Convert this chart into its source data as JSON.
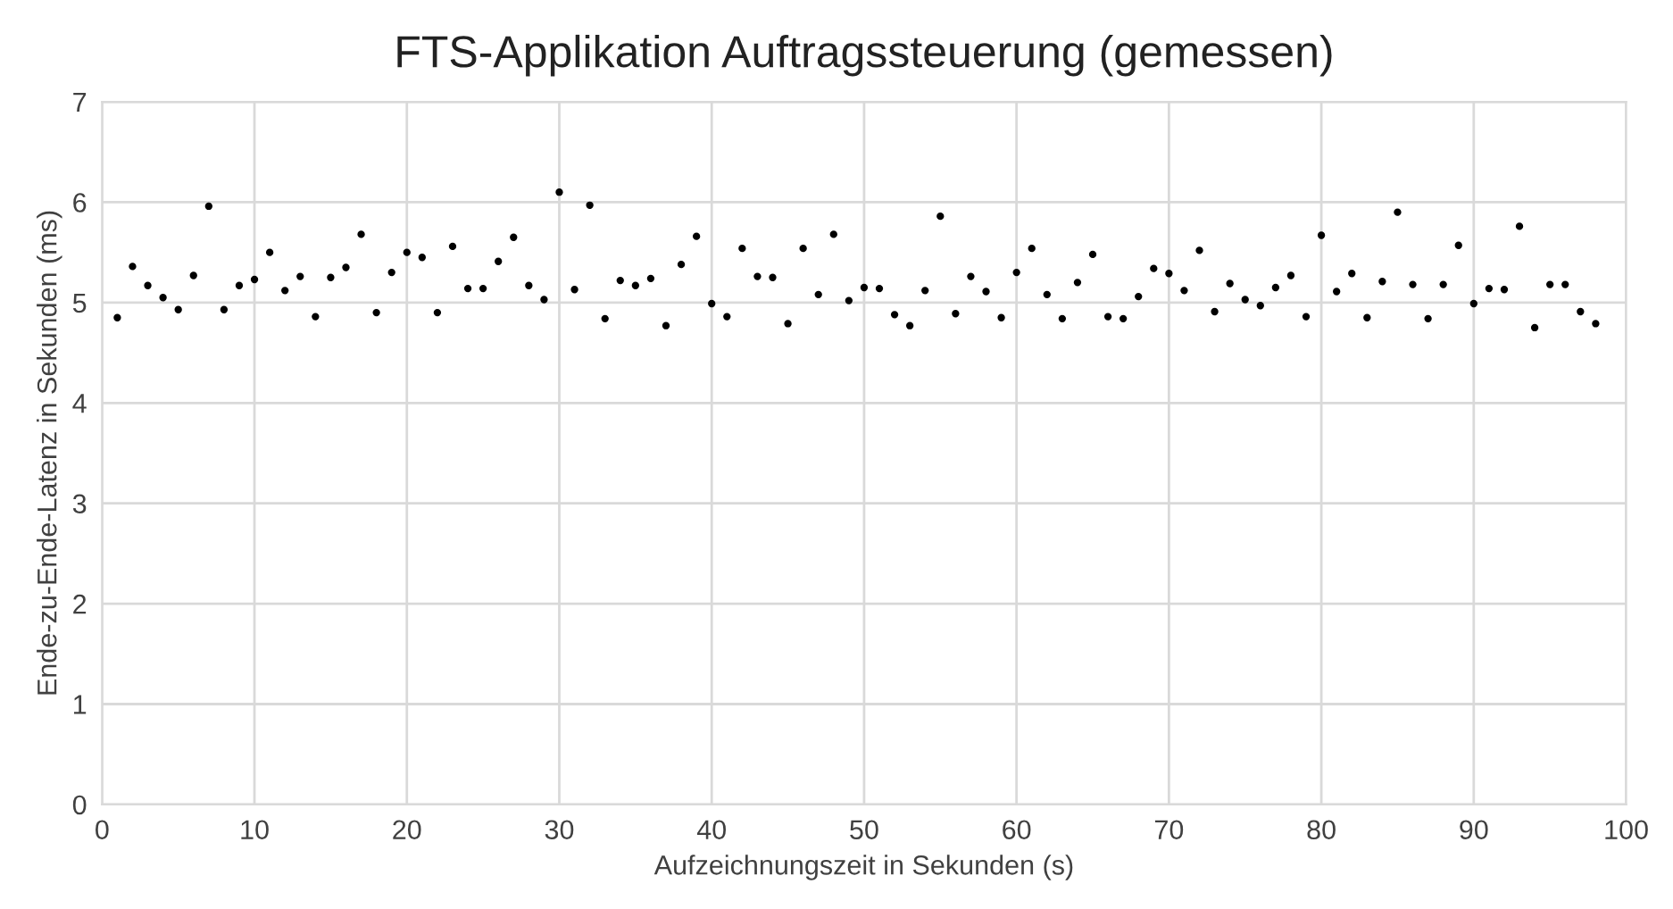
{
  "chart_data": {
    "type": "scatter",
    "title": "FTS-Applikation Auftragssteuerung (gemessen)",
    "xlabel": "Aufzeichnungszeit in Sekunden (s)",
    "ylabel": "Ende-zu-Ende-Latenz in Sekunden (ms)",
    "x": [
      1,
      2,
      3,
      4,
      5,
      6,
      7,
      8,
      9,
      10,
      11,
      12,
      13,
      14,
      15,
      16,
      17,
      18,
      19,
      20,
      21,
      22,
      23,
      24,
      25,
      26,
      27,
      28,
      29,
      30,
      31,
      32,
      33,
      34,
      35,
      36,
      37,
      38,
      39,
      40,
      41,
      42,
      43,
      44,
      45,
      46,
      47,
      48,
      49,
      50,
      51,
      52,
      53,
      54,
      55,
      56,
      57,
      58,
      59,
      60,
      61,
      62,
      63,
      64,
      65,
      66,
      67,
      68,
      69,
      70,
      71,
      72,
      73,
      74,
      75,
      76,
      77,
      78,
      79,
      80,
      81,
      82,
      83,
      84,
      85,
      86,
      87,
      88,
      89,
      90,
      91,
      92,
      93,
      94,
      95,
      96,
      97,
      98
    ],
    "values": [
      4.85,
      5.36,
      5.17,
      5.05,
      4.93,
      5.27,
      5.96,
      4.93,
      5.17,
      5.23,
      5.5,
      5.12,
      5.26,
      4.86,
      5.25,
      5.35,
      5.68,
      4.9,
      5.3,
      5.5,
      5.45,
      4.9,
      5.56,
      5.14,
      5.14,
      5.41,
      5.65,
      5.17,
      5.03,
      6.1,
      5.13,
      5.97,
      4.84,
      5.22,
      5.17,
      5.24,
      4.77,
      5.38,
      5.66,
      4.99,
      4.86,
      5.54,
      5.26,
      5.25,
      4.79,
      5.54,
      5.08,
      5.68,
      5.02,
      5.15,
      5.14,
      4.88,
      4.77,
      5.12,
      5.86,
      4.89,
      5.26,
      5.11,
      4.85,
      5.3,
      5.54,
      5.08,
      4.84,
      5.2,
      5.48,
      4.86,
      4.84,
      5.06,
      5.34,
      5.29,
      5.12,
      5.52,
      4.91,
      5.19,
      5.03,
      4.97,
      5.15,
      5.27,
      4.86,
      5.67,
      5.11,
      5.29,
      4.85,
      5.21,
      5.9,
      5.18,
      4.84,
      5.18,
      5.57,
      4.99,
      5.14,
      5.13,
      5.76,
      4.75,
      5.18,
      5.18,
      4.91,
      4.79
    ],
    "color": "#000000",
    "marker": "circle",
    "xlim": [
      0,
      100
    ],
    "xticks": [
      0,
      10,
      20,
      30,
      40,
      50,
      60,
      70,
      80,
      90,
      100
    ],
    "ylim": [
      0,
      7
    ],
    "yticks": [
      0,
      1,
      2,
      3,
      4,
      5,
      6,
      7
    ],
    "grid": true
  }
}
